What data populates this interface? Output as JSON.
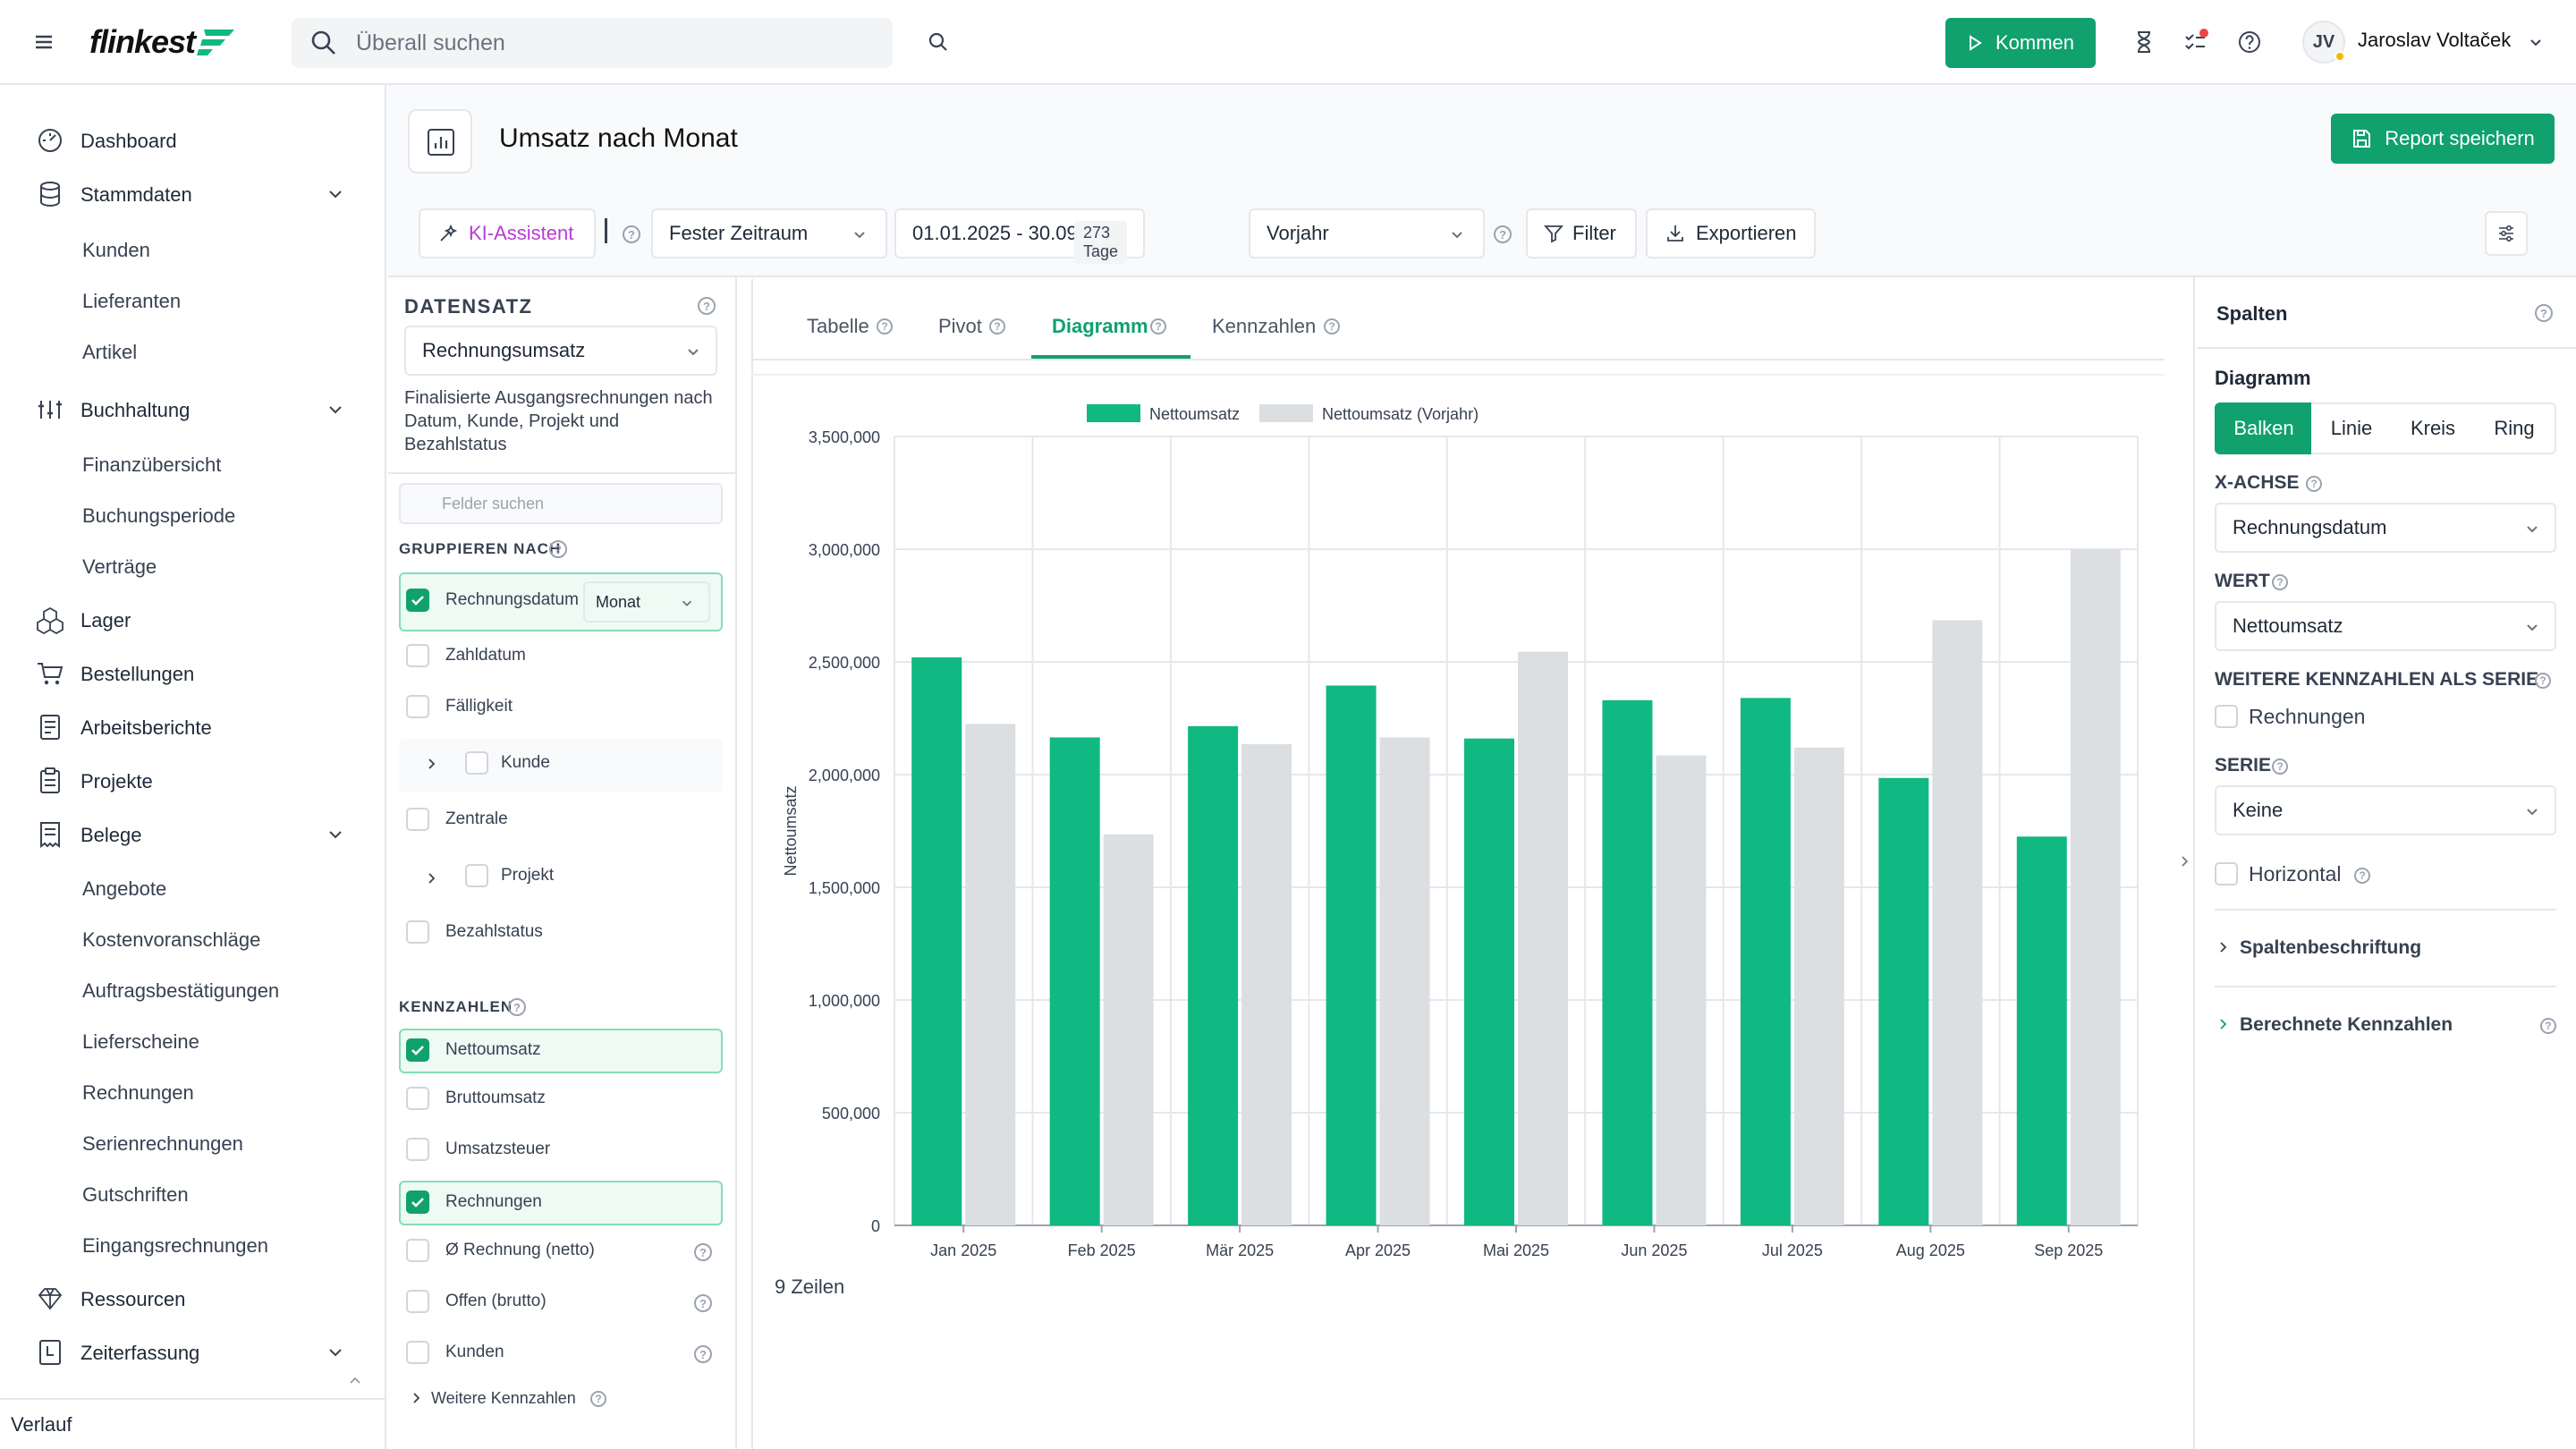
{
  "app": {
    "logo": "flinkest"
  },
  "topbar": {
    "search_placeholder": "Überall suchen",
    "kommen_label": "Kommen",
    "user_initials": "JV",
    "user_name": "Jaroslav Voltaček"
  },
  "sidebar": {
    "items": [
      {
        "label": "Dashboard"
      },
      {
        "label": "Stammdaten"
      },
      {
        "label": "Kunden"
      },
      {
        "label": "Lieferanten"
      },
      {
        "label": "Artikel"
      },
      {
        "label": "Buchhaltung"
      },
      {
        "label": "Finanzübersicht"
      },
      {
        "label": "Buchungsperiode"
      },
      {
        "label": "Verträge"
      },
      {
        "label": "Lager"
      },
      {
        "label": "Bestellungen"
      },
      {
        "label": "Arbeitsberichte"
      },
      {
        "label": "Projekte"
      },
      {
        "label": "Belege"
      },
      {
        "label": "Angebote"
      },
      {
        "label": "Kostenvoranschläge"
      },
      {
        "label": "Auftragsbestätigungen"
      },
      {
        "label": "Lieferscheine"
      },
      {
        "label": "Rechnungen"
      },
      {
        "label": "Serienrechnungen"
      },
      {
        "label": "Gutschriften"
      },
      {
        "label": "Eingangsrechnungen"
      },
      {
        "label": "Ressourcen"
      },
      {
        "label": "Zeiterfassung"
      }
    ],
    "footer": "Verlauf"
  },
  "page": {
    "title": "Umsatz nach Monat",
    "save_label": "Report speichern"
  },
  "toolbar": {
    "ai_label": "KI-Assistent",
    "period_type": "Fester Zeitraum",
    "date_range": "01.01.2025 - 30.09.2...",
    "days_badge": "273 Tage",
    "compare": "Vorjahr",
    "filter_label": "Filter",
    "export_label": "Exportieren"
  },
  "dataset": {
    "heading": "DATENSATZ",
    "selected": "Rechnungsumsatz",
    "description": "Finalisierte Ausgangsrechnungen nach Datum, Kunde, Projekt und Bezahlstatus",
    "field_search_placeholder": "Felder suchen",
    "group_heading": "GRUPPIEREN NACH",
    "group_fields": [
      {
        "label": "Rechnungsdatum",
        "checked": true,
        "granularity": "Monat"
      },
      {
        "label": "Zahldatum",
        "checked": false
      },
      {
        "label": "Fälligkeit",
        "checked": false
      },
      {
        "label": "Kunde",
        "checked": false
      },
      {
        "label": "Zentrale",
        "checked": false
      },
      {
        "label": "Projekt",
        "checked": false
      },
      {
        "label": "Bezahlstatus",
        "checked": false
      }
    ],
    "metrics_heading": "KENNZAHLEN",
    "metrics": [
      {
        "label": "Nettoumsatz",
        "checked": true
      },
      {
        "label": "Bruttoumsatz",
        "checked": false
      },
      {
        "label": "Umsatzsteuer",
        "checked": false
      },
      {
        "label": "Rechnungen",
        "checked": true
      },
      {
        "label": "Ø Rechnung (netto)",
        "checked": false
      },
      {
        "label": "Offen (brutto)",
        "checked": false
      },
      {
        "label": "Kunden",
        "checked": false
      }
    ],
    "more_metrics": "Weitere Kennzahlen"
  },
  "tabs": [
    {
      "label": "Tabelle"
    },
    {
      "label": "Pivot"
    },
    {
      "label": "Diagramm"
    },
    {
      "label": "Kennzahlen"
    }
  ],
  "rows_info": "9 Zeilen",
  "colors": {
    "primary": "#10b981",
    "secondary": "#dcdfe2",
    "accent": "#10a16e"
  },
  "chart_data": {
    "type": "bar",
    "categories": [
      "Jan 2025",
      "Feb 2025",
      "Mär 2025",
      "Apr 2025",
      "Mai 2025",
      "Jun 2025",
      "Jul 2025",
      "Aug 2025",
      "Sep 2025"
    ],
    "series": [
      {
        "name": "Nettoumsatz",
        "values": [
          2520000,
          2165000,
          2215000,
          2395000,
          2160000,
          2330000,
          2340000,
          1985000,
          1725000
        ]
      },
      {
        "name": "Nettoumsatz (Vorjahr)",
        "values": [
          2225000,
          1735000,
          2135000,
          2165000,
          2545000,
          2085000,
          2120000,
          2685000,
          3000000
        ]
      }
    ],
    "ylabel": "Nettoumsatz",
    "ylim": [
      0,
      3500000
    ],
    "yticks": [
      "0",
      "500,000",
      "1,000,000",
      "1,500,000",
      "2,000,000",
      "2,500,000",
      "3,000,000",
      "3,500,000"
    ],
    "grid": true,
    "legend": "top-center"
  },
  "rpanel": {
    "heading": "Spalten",
    "chart_label": "Diagramm",
    "chart_types": [
      "Balken",
      "Linie",
      "Kreis",
      "Ring"
    ],
    "xaxis_label": "X-ACHSE",
    "xaxis_value": "Rechnungsdatum",
    "value_label": "WERT",
    "value_value": "Nettoumsatz",
    "series_extra_label": "WEITERE KENNZAHLEN ALS SERIE",
    "series_extra_item": "Rechnungen",
    "serie_label": "SERIE",
    "serie_value": "Keine",
    "horizontal_label": "Horizontal",
    "columns_label": "Spaltenbeschriftung",
    "calc_label": "Berechnete Kennzahlen"
  }
}
